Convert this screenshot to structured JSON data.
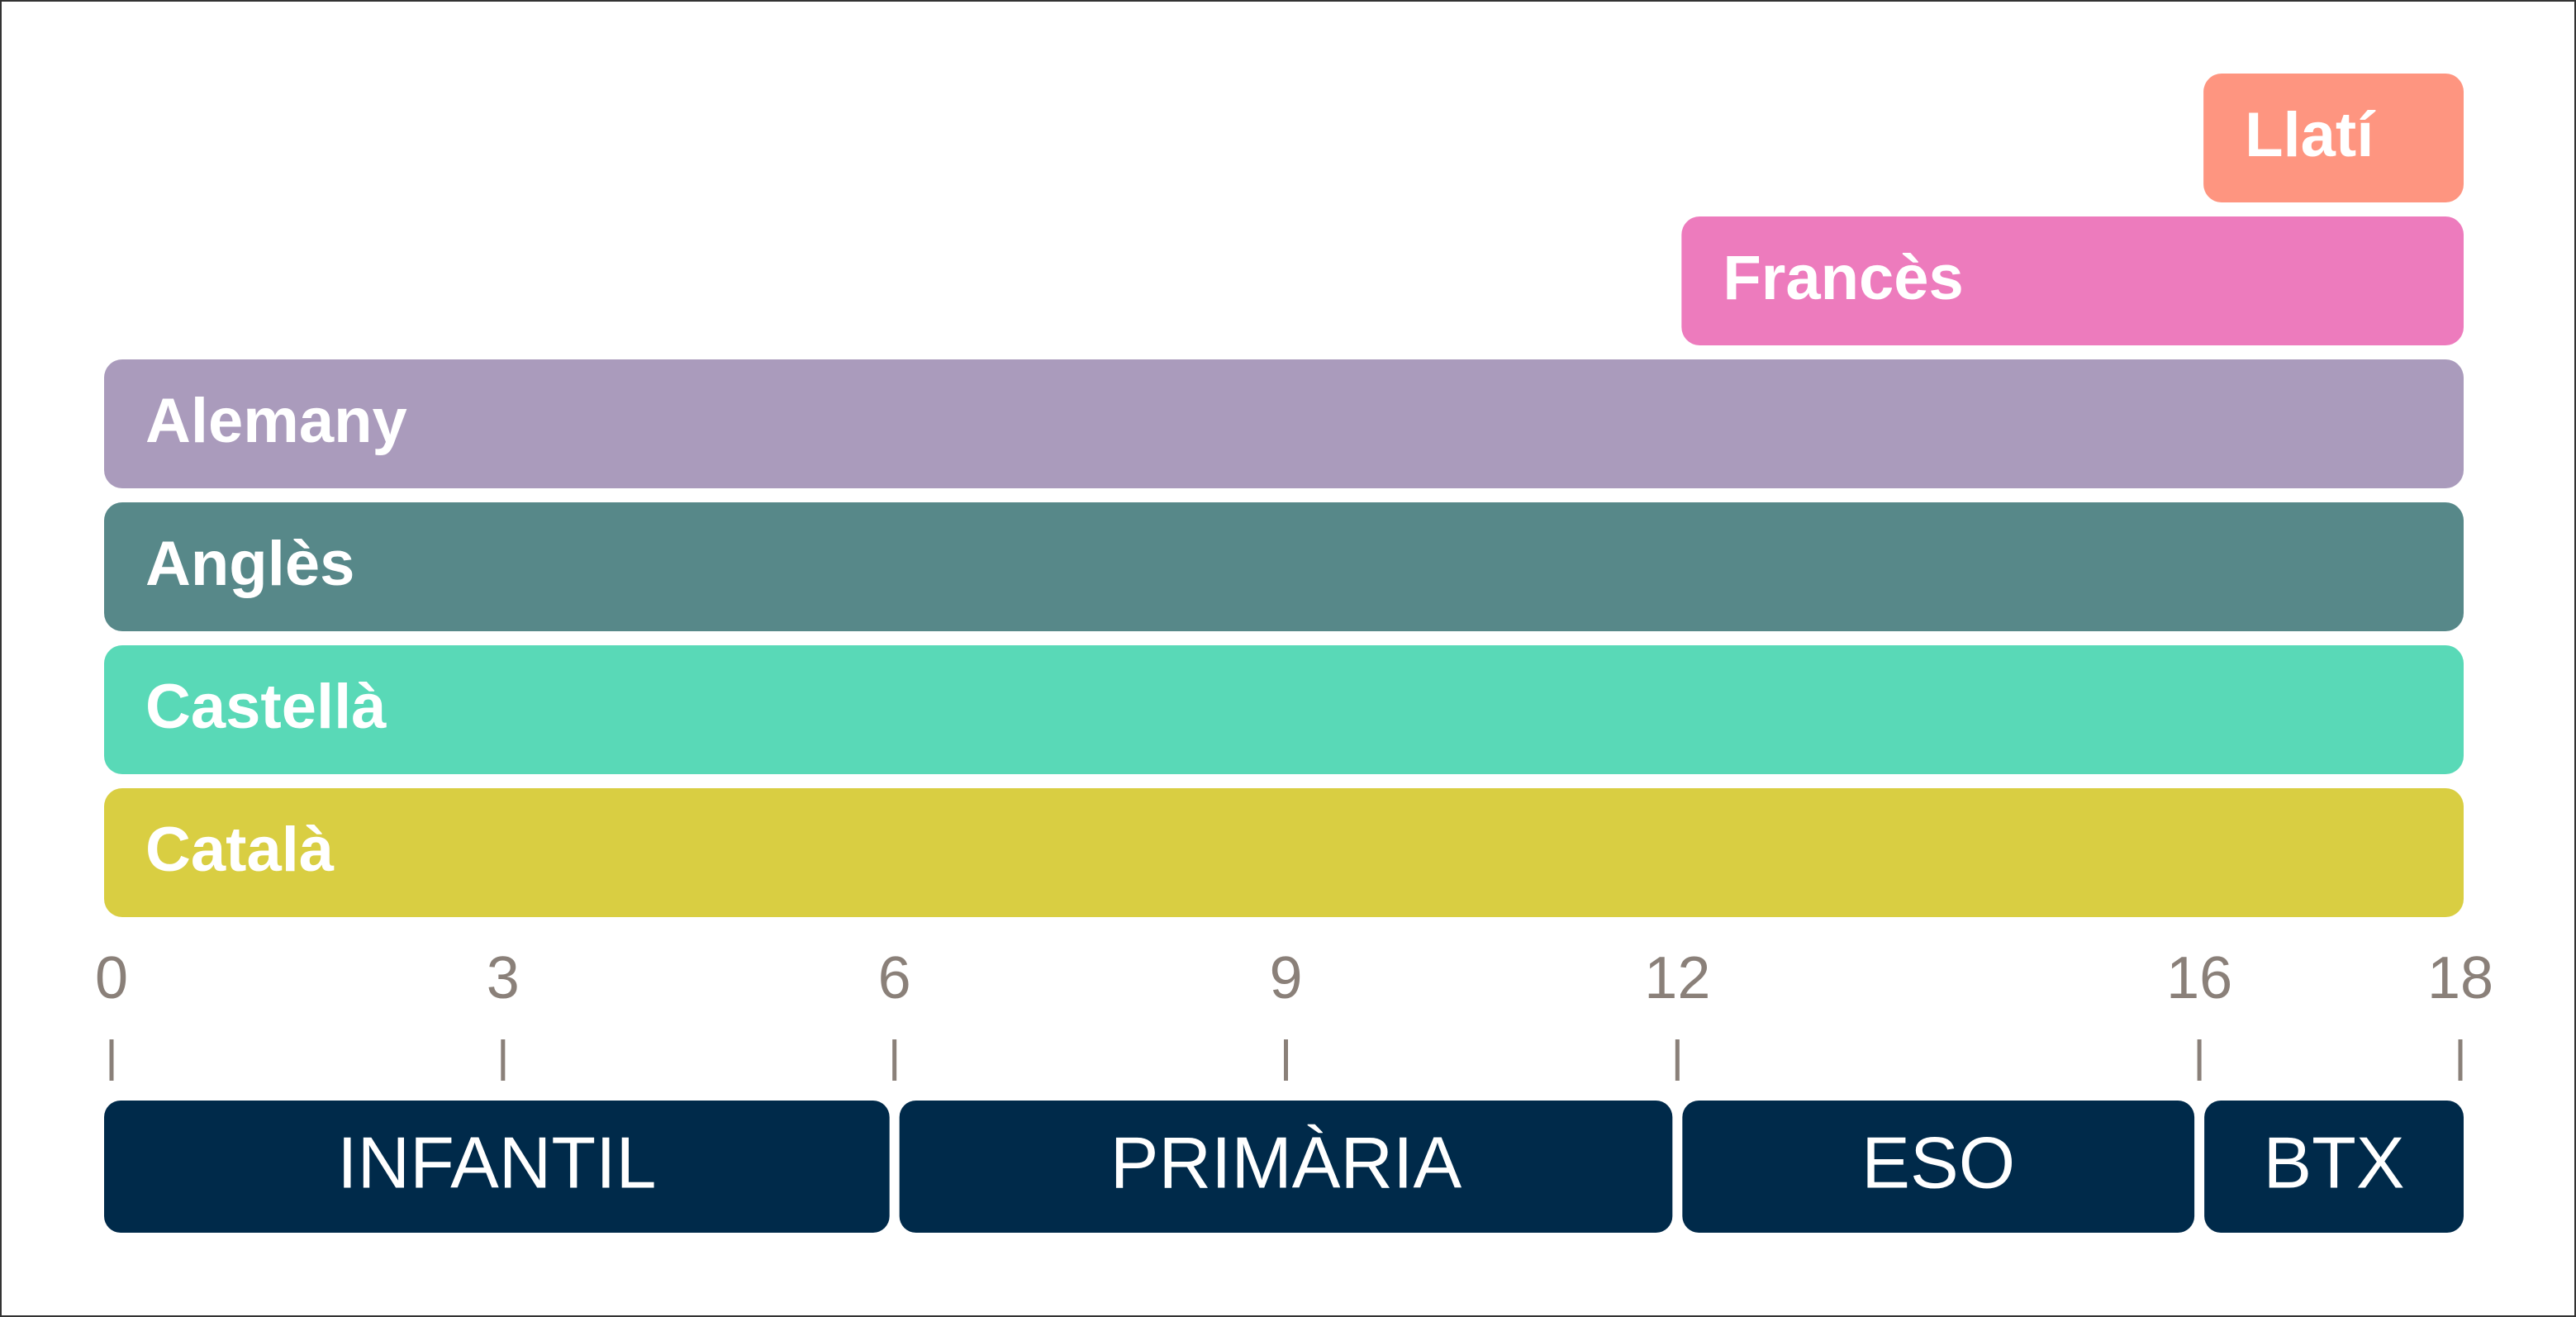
{
  "chart_data": {
    "type": "range_bar",
    "xlim": [
      0,
      18
    ],
    "xticks": [
      0,
      3,
      6,
      9,
      12,
      16,
      18
    ],
    "bars": [
      {
        "name": "Llatí",
        "start": 16,
        "end": 18,
        "color": "#fe9580"
      },
      {
        "name": "Francès",
        "start": 12,
        "end": 18,
        "color": "#ed7bbd"
      },
      {
        "name": "Alemany",
        "start": 0,
        "end": 18,
        "color": "#aa9bbc"
      },
      {
        "name": "Anglès",
        "start": 0,
        "end": 18,
        "color": "#578889"
      },
      {
        "name": "Castellà",
        "start": 0,
        "end": 18,
        "color": "#59d9b7"
      },
      {
        "name": "Català",
        "start": 0,
        "end": 18,
        "color": "#d9ce42"
      }
    ],
    "stages": [
      {
        "name": "INFANTIL",
        "start": 0,
        "end": 6,
        "color": "#002a4a"
      },
      {
        "name": "PRIMÀRIA",
        "start": 6,
        "end": 12,
        "color": "#002a4a"
      },
      {
        "name": "ESO",
        "start": 12,
        "end": 16,
        "color": "#002a4a"
      },
      {
        "name": "BTX",
        "start": 16,
        "end": 18,
        "color": "#002a4a"
      }
    ]
  }
}
